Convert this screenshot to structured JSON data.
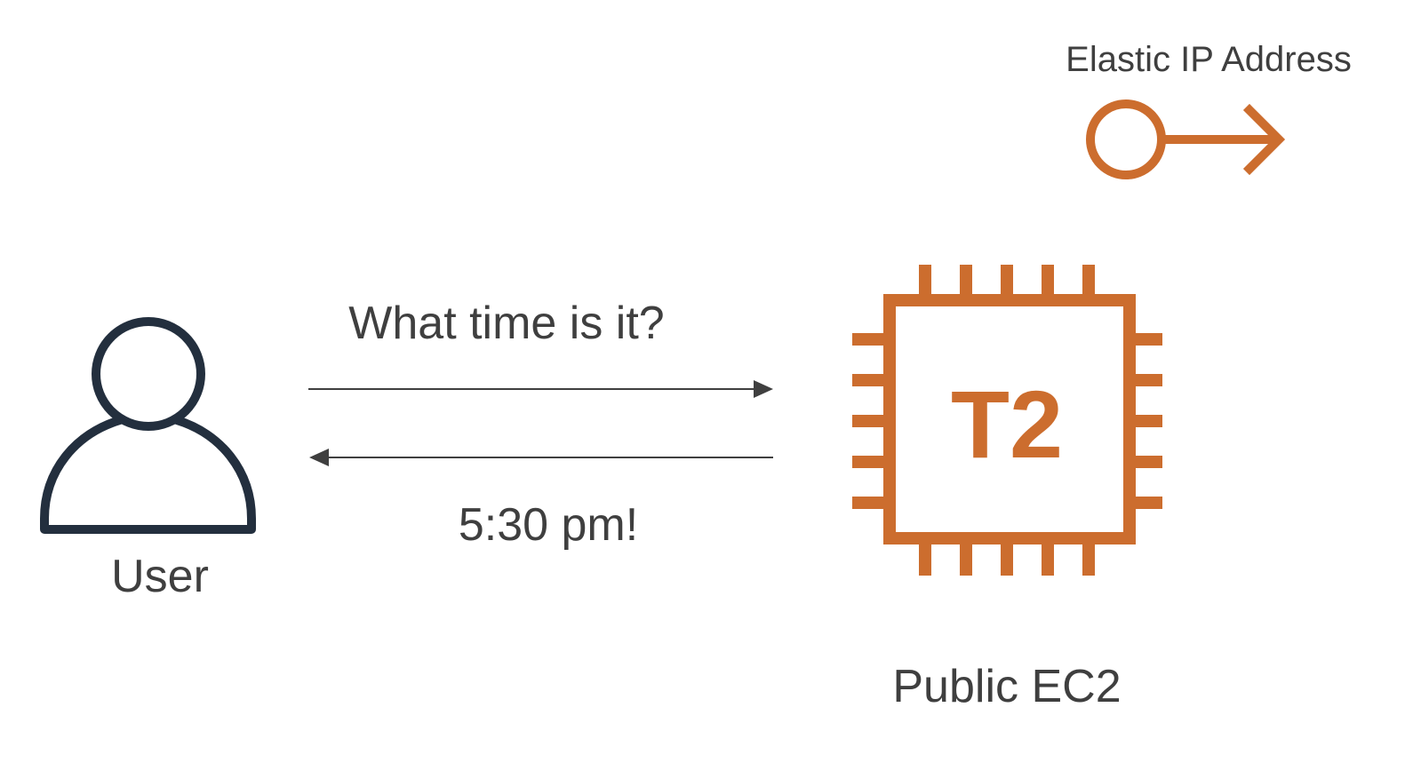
{
  "diagram": {
    "eip": {
      "label": "Elastic IP Address"
    },
    "user": {
      "label": "User"
    },
    "request": {
      "label": "What time is it?"
    },
    "response": {
      "label": "5:30 pm!"
    },
    "ec2": {
      "chip_label": "T2",
      "label": "Public EC2"
    },
    "colors": {
      "accent": "#cc6d2e",
      "user_stroke": "#232f3e",
      "text": "#3f3f3f",
      "arrow": "#3f3f3f"
    }
  }
}
